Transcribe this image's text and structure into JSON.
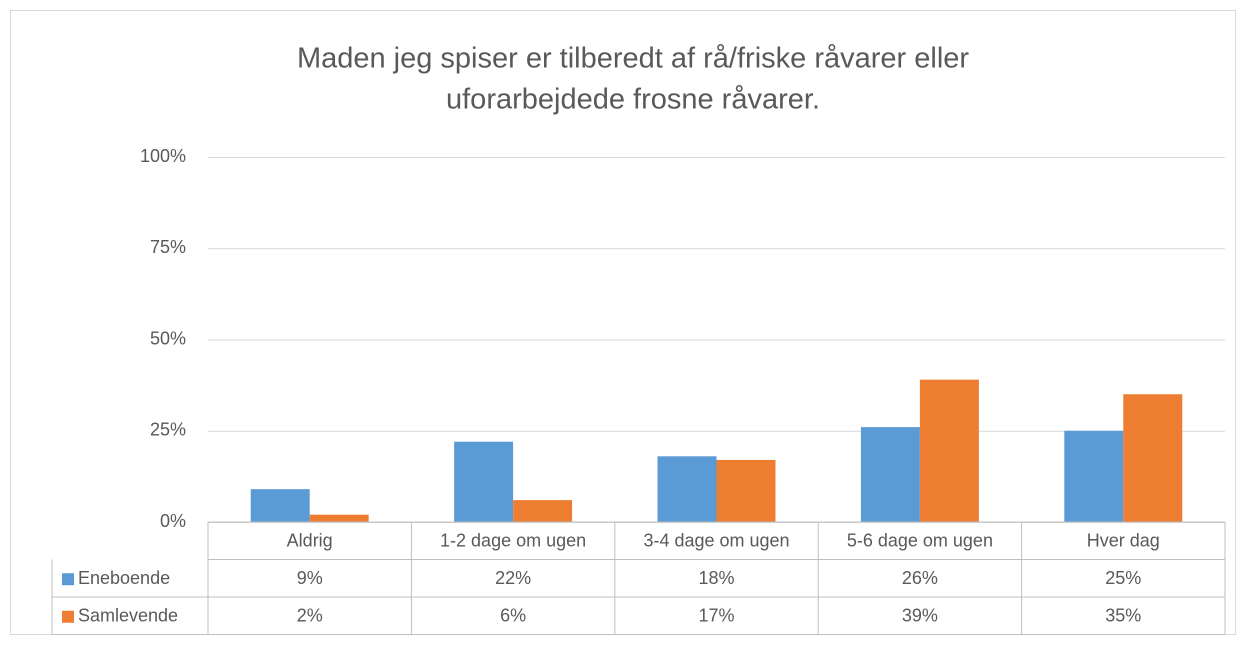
{
  "chart_data": {
    "type": "bar",
    "title": [
      "Maden jeg spiser er tilberedt af rå/friske råvarer eller",
      "uforarbejdede frosne råvarer."
    ],
    "categories": [
      "Aldrig",
      "1-2 dage om ugen",
      "3-4 dage om ugen",
      "5-6 dage om ugen",
      "Hver dag"
    ],
    "series": [
      {
        "name": "Eneboende",
        "color": "#5b9bd5",
        "values": [
          9,
          22,
          18,
          26,
          25
        ],
        "value_labels": [
          "9%",
          "22%",
          "18%",
          "26%",
          "25%"
        ]
      },
      {
        "name": "Samlevende",
        "color": "#ed7d31",
        "values": [
          2,
          6,
          17,
          39,
          35
        ],
        "value_labels": [
          "2%",
          "6%",
          "17%",
          "39%",
          "35%"
        ]
      }
    ],
    "ylim": [
      0,
      100
    ],
    "yticks": [
      {
        "value": 0,
        "label": "0%"
      },
      {
        "value": 25,
        "label": "25%"
      },
      {
        "value": 50,
        "label": "50%"
      },
      {
        "value": 75,
        "label": "75%"
      },
      {
        "value": 100,
        "label": "100%"
      }
    ],
    "grid": true,
    "data_table": true
  }
}
